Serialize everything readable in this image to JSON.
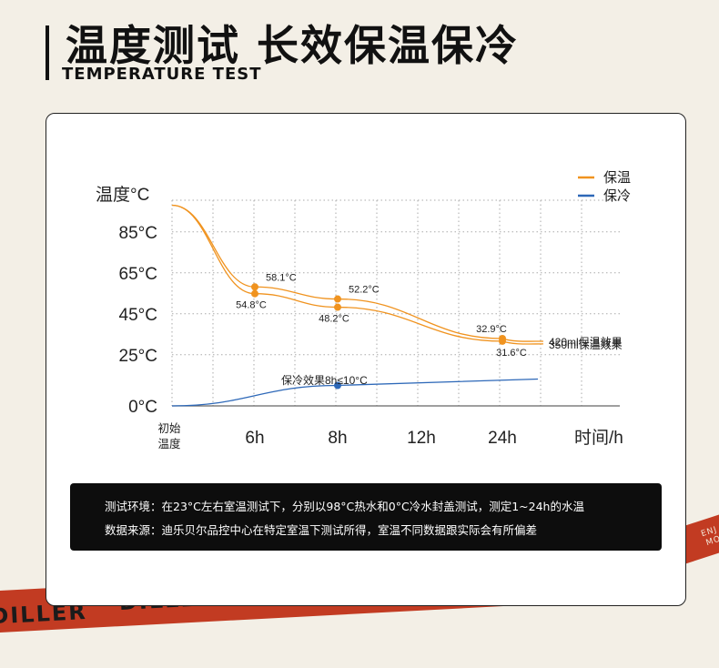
{
  "header": {
    "title": "温度测试 长效保温保冷",
    "subtitle": "TEMPERATURE TEST"
  },
  "brand": {
    "ribbon_text_1": "DILLER",
    "ribbon_text_2": "DILLER",
    "ribbon_side_text_1": "ENJ",
    "ribbon_side_text_2": "MO"
  },
  "notes": {
    "line1": "测试环境：在23°C左右室温测试下，分别以98°C热水和0°C冷水封盖测试，测定1~24h的水温",
    "line2": "数据来源：迪乐贝尔品控中心在特定室温下测试所得，室温不同数据跟实际会有所偏差"
  },
  "colors": {
    "hot": "#f0931f",
    "cold": "#2d68b8",
    "ribbon": "#c23b22",
    "background": "#f3efe6"
  },
  "chart_data": {
    "type": "line",
    "ylabel": "温度°C",
    "xlabel": "时间/h",
    "x_categories": [
      "初始温度",
      "6h",
      "8h",
      "12h",
      "24h"
    ],
    "y_ticks": [
      "85°C",
      "65°C",
      "45°C",
      "25°C",
      "0°C"
    ],
    "ylim": [
      0,
      98
    ],
    "grid": true,
    "legend": [
      {
        "name": "保温",
        "color": "#f0931f"
      },
      {
        "name": "保冷",
        "color": "#2d68b8"
      }
    ],
    "legend_position": "top-right",
    "series": [
      {
        "name": "420ml保温效果",
        "color": "#f0931f",
        "points": [
          {
            "x": "初始温度",
            "y": 98
          },
          {
            "x": "6h",
            "y": 58.1,
            "label": "58.1°C"
          },
          {
            "x": "8h",
            "y": 52.2,
            "label": "52.2°C"
          },
          {
            "x": "24h",
            "y": 32.9,
            "label": "32.9°C"
          }
        ]
      },
      {
        "name": "350ml保温效果",
        "color": "#f0931f",
        "points": [
          {
            "x": "初始温度",
            "y": 98
          },
          {
            "x": "6h",
            "y": 54.8,
            "label": "54.8°C"
          },
          {
            "x": "8h",
            "y": 48.2,
            "label": "48.2°C"
          },
          {
            "x": "24h",
            "y": 31.6,
            "label": "31.6°C"
          }
        ]
      },
      {
        "name": "保冷",
        "color": "#2d68b8",
        "points": [
          {
            "x": "初始温度",
            "y": 0
          },
          {
            "x": "8h",
            "y": 10
          }
        ]
      }
    ],
    "annotations": [
      "保冷效果8h≤10°C"
    ]
  }
}
